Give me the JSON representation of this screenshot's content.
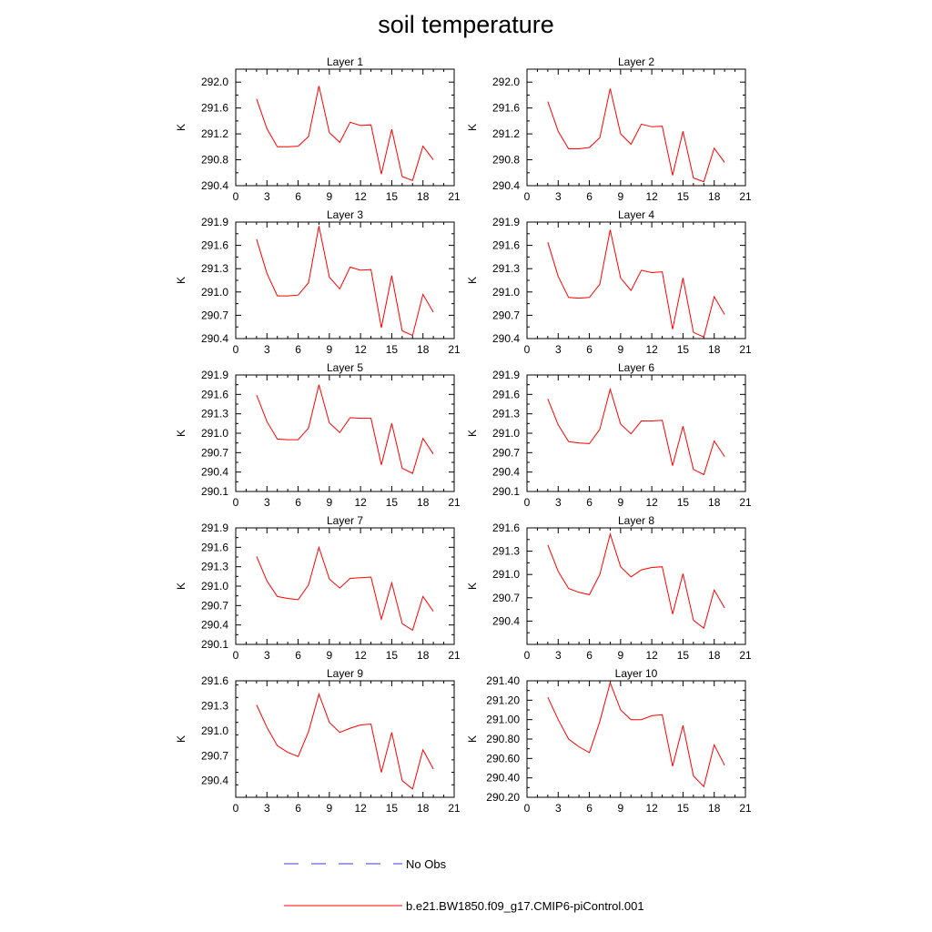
{
  "title": "soil temperature",
  "legend": {
    "obs_label": "No Obs",
    "model_label": "b.e21.BW1850.f09_g17.CMIP6-piControl.001",
    "obs_color": "#3b3bd0",
    "model_color": "#ff0000"
  },
  "chart_data": [
    {
      "type": "line",
      "title": "Layer 1",
      "ylabel": "K",
      "xlim": [
        0,
        21
      ],
      "xticks": [
        0,
        3,
        6,
        9,
        12,
        15,
        18,
        21
      ],
      "ylim": [
        290.4,
        292.2
      ],
      "yticks": [
        290.4,
        290.8,
        291.2,
        291.6,
        292.0
      ],
      "ytick_labels": [
        "290.4",
        "290.8",
        "291.2",
        "291.6",
        "292.0"
      ],
      "x": [
        2,
        3,
        4,
        5,
        6,
        7,
        8,
        9,
        10,
        11,
        12,
        13,
        14,
        15,
        16,
        17,
        18,
        19
      ],
      "series": [
        {
          "name": "b.e21.BW1850.f09_g17.CMIP6-piControl.001",
          "values": [
            291.74,
            291.28,
            291.0,
            291.0,
            291.01,
            291.16,
            291.94,
            291.22,
            291.07,
            291.38,
            291.33,
            291.34,
            290.58,
            291.27,
            290.54,
            290.48,
            291.01,
            290.8
          ]
        }
      ]
    },
    {
      "type": "line",
      "title": "Layer 2",
      "ylabel": "K",
      "xlim": [
        0,
        21
      ],
      "xticks": [
        0,
        3,
        6,
        9,
        12,
        15,
        18,
        21
      ],
      "ylim": [
        290.4,
        292.2
      ],
      "yticks": [
        290.4,
        290.8,
        291.2,
        291.6,
        292.0
      ],
      "ytick_labels": [
        "290.4",
        "290.8",
        "291.2",
        "291.6",
        "292.0"
      ],
      "x": [
        2,
        3,
        4,
        5,
        6,
        7,
        8,
        9,
        10,
        11,
        12,
        13,
        14,
        15,
        16,
        17,
        18,
        19
      ],
      "series": [
        {
          "name": "b.e21.BW1850.f09_g17.CMIP6-piControl.001",
          "values": [
            291.7,
            291.24,
            290.97,
            290.97,
            290.99,
            291.14,
            291.9,
            291.2,
            291.04,
            291.35,
            291.31,
            291.32,
            290.56,
            291.24,
            290.52,
            290.46,
            290.98,
            290.76
          ]
        }
      ]
    },
    {
      "type": "line",
      "title": "Layer 3",
      "ylabel": "K",
      "xlim": [
        0,
        21
      ],
      "xticks": [
        0,
        3,
        6,
        9,
        12,
        15,
        18,
        21
      ],
      "ylim": [
        290.4,
        291.9
      ],
      "yticks": [
        290.4,
        290.7,
        291.0,
        291.3,
        291.6,
        291.9
      ],
      "ytick_labels": [
        "290.4",
        "290.7",
        "291.0",
        "291.3",
        "291.6",
        "291.9"
      ],
      "x": [
        2,
        3,
        4,
        5,
        6,
        7,
        8,
        9,
        10,
        11,
        12,
        13,
        14,
        15,
        16,
        17,
        18,
        19
      ],
      "series": [
        {
          "name": "b.e21.BW1850.f09_g17.CMIP6-piControl.001",
          "values": [
            291.68,
            291.24,
            290.95,
            290.95,
            290.96,
            291.12,
            291.85,
            291.19,
            291.04,
            291.32,
            291.28,
            291.29,
            290.54,
            291.21,
            290.5,
            290.44,
            290.97,
            290.74
          ]
        }
      ]
    },
    {
      "type": "line",
      "title": "Layer 4",
      "ylabel": "K",
      "xlim": [
        0,
        21
      ],
      "xticks": [
        0,
        3,
        6,
        9,
        12,
        15,
        18,
        21
      ],
      "ylim": [
        290.4,
        291.9
      ],
      "yticks": [
        290.4,
        290.7,
        291.0,
        291.3,
        291.6,
        291.9
      ],
      "ytick_labels": [
        "290.4",
        "290.7",
        "291.0",
        "291.3",
        "291.6",
        "291.9"
      ],
      "x": [
        2,
        3,
        4,
        5,
        6,
        7,
        8,
        9,
        10,
        11,
        12,
        13,
        14,
        15,
        16,
        17,
        18,
        19
      ],
      "series": [
        {
          "name": "b.e21.BW1850.f09_g17.CMIP6-piControl.001",
          "values": [
            291.64,
            291.2,
            290.93,
            290.92,
            290.93,
            291.1,
            291.8,
            291.18,
            291.02,
            291.28,
            291.25,
            291.26,
            290.52,
            291.18,
            290.48,
            290.42,
            290.94,
            290.71
          ]
        }
      ]
    },
    {
      "type": "line",
      "title": "Layer 5",
      "ylabel": "K",
      "xlim": [
        0,
        21
      ],
      "xticks": [
        0,
        3,
        6,
        9,
        12,
        15,
        18,
        21
      ],
      "ylim": [
        290.1,
        291.9
      ],
      "yticks": [
        290.1,
        290.4,
        290.7,
        291.0,
        291.3,
        291.6,
        291.9
      ],
      "ytick_labels": [
        "290.1",
        "290.4",
        "290.7",
        "291.0",
        "291.3",
        "291.6",
        "291.9"
      ],
      "x": [
        2,
        3,
        4,
        5,
        6,
        7,
        8,
        9,
        10,
        11,
        12,
        13,
        14,
        15,
        16,
        17,
        18,
        19
      ],
      "series": [
        {
          "name": "b.e21.BW1850.f09_g17.CMIP6-piControl.001",
          "values": [
            291.59,
            291.18,
            290.91,
            290.9,
            290.9,
            291.08,
            291.75,
            291.16,
            291.01,
            291.24,
            291.23,
            291.23,
            290.51,
            291.15,
            290.46,
            290.38,
            290.92,
            290.68
          ]
        }
      ]
    },
    {
      "type": "line",
      "title": "Layer 6",
      "ylabel": "K",
      "xlim": [
        0,
        21
      ],
      "xticks": [
        0,
        3,
        6,
        9,
        12,
        15,
        18,
        21
      ],
      "ylim": [
        290.1,
        291.9
      ],
      "yticks": [
        290.1,
        290.4,
        290.7,
        291.0,
        291.3,
        291.6,
        291.9
      ],
      "ytick_labels": [
        "290.1",
        "290.4",
        "290.7",
        "291.0",
        "291.3",
        "291.6",
        "291.9"
      ],
      "x": [
        2,
        3,
        4,
        5,
        6,
        7,
        8,
        9,
        10,
        11,
        12,
        13,
        14,
        15,
        16,
        17,
        18,
        19
      ],
      "series": [
        {
          "name": "b.e21.BW1850.f09_g17.CMIP6-piControl.001",
          "values": [
            291.53,
            291.13,
            290.87,
            290.85,
            290.84,
            291.06,
            291.68,
            291.14,
            290.99,
            291.19,
            291.19,
            291.2,
            290.5,
            291.11,
            290.44,
            290.36,
            290.88,
            290.64
          ]
        }
      ]
    },
    {
      "type": "line",
      "title": "Layer 7",
      "ylabel": "K",
      "xlim": [
        0,
        21
      ],
      "xticks": [
        0,
        3,
        6,
        9,
        12,
        15,
        18,
        21
      ],
      "ylim": [
        290.1,
        291.9
      ],
      "yticks": [
        290.1,
        290.4,
        290.7,
        291.0,
        291.3,
        291.6,
        291.9
      ],
      "ytick_labels": [
        "290.1",
        "290.4",
        "290.7",
        "291.0",
        "291.3",
        "291.6",
        "291.9"
      ],
      "x": [
        2,
        3,
        4,
        5,
        6,
        7,
        8,
        9,
        10,
        11,
        12,
        13,
        14,
        15,
        16,
        17,
        18,
        19
      ],
      "series": [
        {
          "name": "b.e21.BW1850.f09_g17.CMIP6-piControl.001",
          "values": [
            291.46,
            291.08,
            290.84,
            290.81,
            290.79,
            291.02,
            291.6,
            291.11,
            290.97,
            291.12,
            291.13,
            291.14,
            290.49,
            291.05,
            290.42,
            290.32,
            290.84,
            290.61
          ]
        }
      ]
    },
    {
      "type": "line",
      "title": "Layer 8",
      "ylabel": "K",
      "xlim": [
        0,
        21
      ],
      "xticks": [
        0,
        3,
        6,
        9,
        12,
        15,
        18,
        21
      ],
      "ylim": [
        290.1,
        291.6
      ],
      "yticks": [
        290.4,
        290.7,
        291.0,
        291.3,
        291.6
      ],
      "ytick_labels": [
        "290.4",
        "290.7",
        "291.0",
        "291.3",
        "291.6"
      ],
      "x": [
        2,
        3,
        4,
        5,
        6,
        7,
        8,
        9,
        10,
        11,
        12,
        13,
        14,
        15,
        16,
        17,
        18,
        19
      ],
      "series": [
        {
          "name": "b.e21.BW1850.f09_g17.CMIP6-piControl.001",
          "values": [
            291.38,
            291.04,
            290.82,
            290.77,
            290.74,
            291.0,
            291.52,
            291.1,
            290.97,
            291.06,
            291.09,
            291.1,
            290.49,
            291.01,
            290.41,
            290.31,
            290.8,
            290.57
          ]
        }
      ]
    },
    {
      "type": "line",
      "title": "Layer 9",
      "ylabel": "K",
      "xlim": [
        0,
        21
      ],
      "xticks": [
        0,
        3,
        6,
        9,
        12,
        15,
        18,
        21
      ],
      "ylim": [
        290.2,
        291.6
      ],
      "yticks": [
        290.4,
        290.7,
        291.0,
        291.3,
        291.6
      ],
      "ytick_labels": [
        "290.4",
        "290.7",
        "291.0",
        "291.3",
        "291.6"
      ],
      "x": [
        2,
        3,
        4,
        5,
        6,
        7,
        8,
        9,
        10,
        11,
        12,
        13,
        14,
        15,
        16,
        17,
        18,
        19
      ],
      "series": [
        {
          "name": "b.e21.BW1850.f09_g17.CMIP6-piControl.001",
          "values": [
            291.31,
            291.04,
            290.82,
            290.74,
            290.69,
            290.99,
            291.44,
            291.1,
            290.98,
            291.03,
            291.07,
            291.08,
            290.5,
            290.98,
            290.4,
            290.3,
            290.77,
            290.54
          ]
        }
      ]
    },
    {
      "type": "line",
      "title": "Layer 10",
      "ylabel": "K",
      "xlim": [
        0,
        21
      ],
      "xticks": [
        0,
        3,
        6,
        9,
        12,
        15,
        18,
        21
      ],
      "ylim": [
        290.2,
        291.4
      ],
      "yticks": [
        290.2,
        290.4,
        290.6,
        290.8,
        291.0,
        291.2,
        291.4
      ],
      "ytick_labels": [
        "290.20",
        "290.40",
        "290.60",
        "290.80",
        "291.00",
        "291.20",
        "291.40"
      ],
      "x": [
        2,
        3,
        4,
        5,
        6,
        7,
        8,
        9,
        10,
        11,
        12,
        13,
        14,
        15,
        16,
        17,
        18,
        19
      ],
      "series": [
        {
          "name": "b.e21.BW1850.f09_g17.CMIP6-piControl.001",
          "values": [
            291.23,
            291.0,
            290.8,
            290.72,
            290.66,
            290.98,
            291.38,
            291.1,
            291.0,
            291.0,
            291.04,
            291.05,
            290.52,
            290.94,
            290.42,
            290.31,
            290.74,
            290.53
          ]
        }
      ]
    }
  ]
}
